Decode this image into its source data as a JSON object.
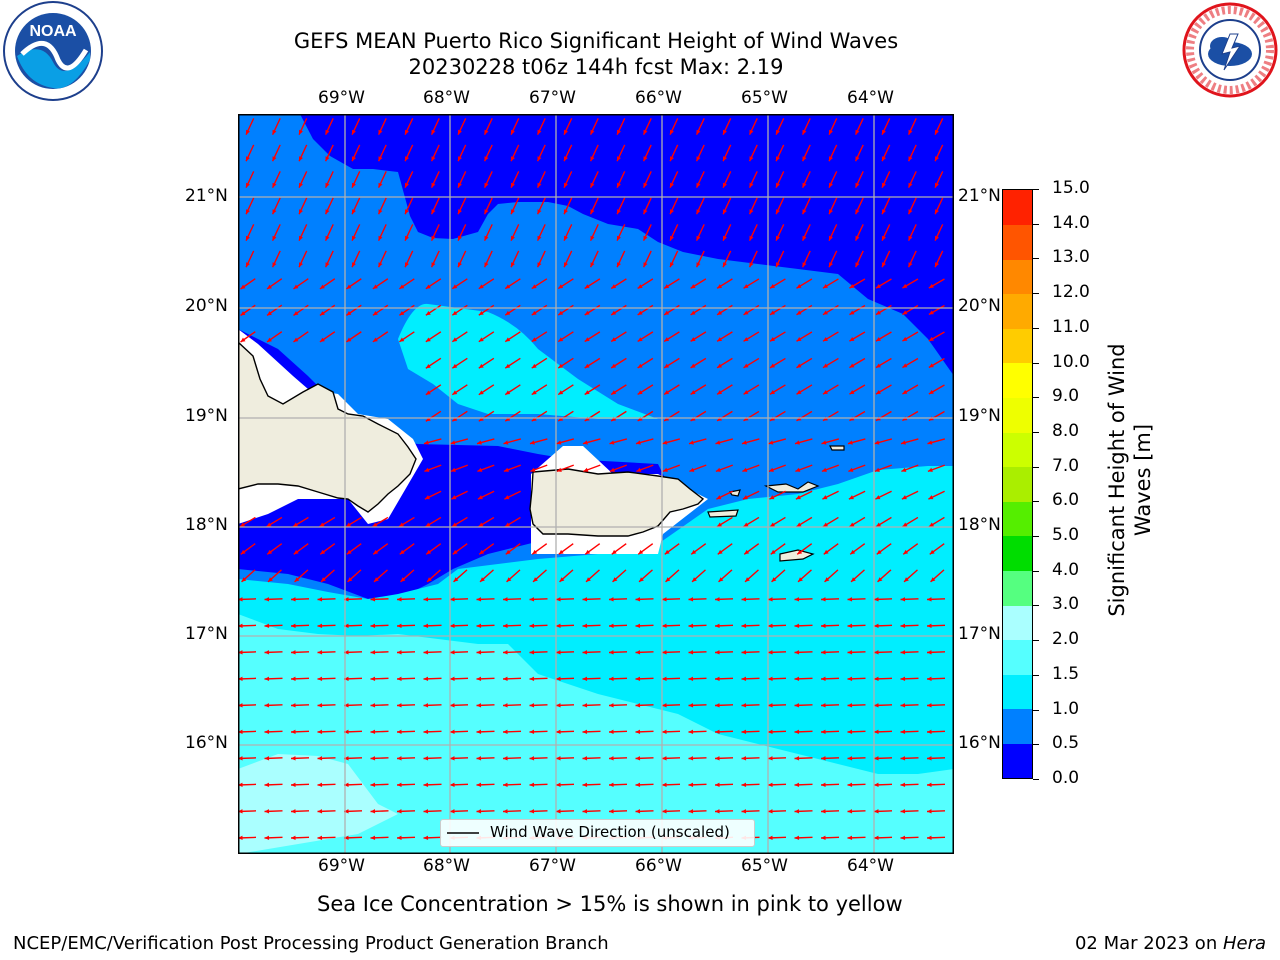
{
  "title": {
    "line1": "GEFS MEAN Puerto Rico Significant Height of Wind Waves",
    "line2": "20230228 t06z 144h fcst   Max: 2.19"
  },
  "logos": {
    "left_icon": "noaa-logo-icon",
    "right_icon": "nws-logo-icon",
    "left_text": "NOAA",
    "nws_text": "NATIONAL WEATHER SERVICE"
  },
  "axes": {
    "lon_labels": [
      "69°W",
      "68°W",
      "67°W",
      "66°W",
      "65°W",
      "64°W"
    ],
    "lat_labels": [
      "21°N",
      "20°N",
      "19°N",
      "18°N",
      "17°N",
      "16°N"
    ]
  },
  "colorbar": {
    "label": "Significant Height of Wind Waves [m]",
    "label_line1": "Significant Height of Wind",
    "label_line2": "Waves [m]",
    "ticks": [
      "15.0",
      "14.0",
      "13.0",
      "12.0",
      "11.0",
      "10.0",
      "9.0",
      "8.0",
      "7.0",
      "6.0",
      "5.0",
      "4.0",
      "3.0",
      "2.0",
      "1.5",
      "1.0",
      "0.5",
      "0.0"
    ],
    "colors": [
      "#0000ff",
      "#0080ff",
      "#00eeff",
      "#55ffff",
      "#aaffff",
      "#55ff80",
      "#00dd00",
      "#55ee00",
      "#aaee00",
      "#ccff00",
      "#eeff00",
      "#ffff00",
      "#ffcc00",
      "#ffaa00",
      "#ff8800",
      "#ff5500",
      "#ff2200"
    ]
  },
  "map": {
    "land_color": "#efedde",
    "arrow_color": "#ff0000",
    "grid_color": "#b0b0b0"
  },
  "legend": {
    "label": "Wind Wave Direction (unscaled)"
  },
  "sea_ice_note": "Sea Ice Concentration > 15% is shown in pink to yellow",
  "footer": {
    "left": "NCEP/EMC/Verification Post Processing Product Generation Branch",
    "date": "02 Mar 2023 on ",
    "machine": "Hera"
  }
}
